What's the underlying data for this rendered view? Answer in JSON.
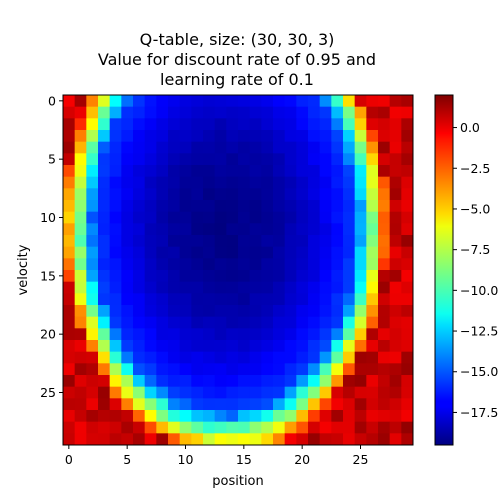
{
  "chart_data": {
    "type": "heatmap",
    "title_lines": [
      "Q-table, size: (30, 30, 3)",
      "Value for discount rate of 0.95 and",
      "learning rate of 0.1"
    ],
    "xlabel": "position",
    "ylabel": "velocity",
    "grid_shape": [
      30,
      30
    ],
    "x_ticks": [
      0,
      5,
      10,
      15,
      20,
      25
    ],
    "y_ticks": [
      0,
      5,
      10,
      15,
      20,
      25
    ],
    "colormap": "jet",
    "value_range": [
      -19.5,
      2.0
    ],
    "colorbar_ticks": [
      0.0,
      -2.5,
      -5.0,
      -7.5,
      -10.0,
      -12.5,
      -15.0,
      -17.5
    ],
    "colorbar_tick_labels": [
      "0.0",
      "−2.5",
      "−5.0",
      "−7.5",
      "−10.0",
      "−12.5",
      "−15.0",
      "−17.5"
    ],
    "value_model": {
      "description": "values estimated from the image: low (deep blue) interior region, bright ring, near-zero (dark red) outside",
      "interior_min": -19.3,
      "interior_edge": -15.5,
      "ring_range": [
        -15.5,
        -2.0
      ],
      "outside_range": [
        -0.5,
        1.6
      ]
    }
  }
}
